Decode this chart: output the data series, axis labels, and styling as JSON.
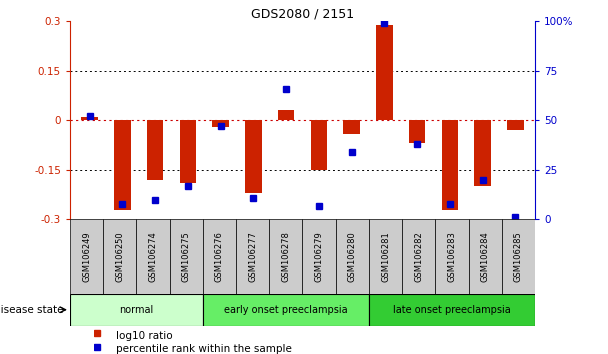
{
  "title": "GDS2080 / 2151",
  "samples": [
    "GSM106249",
    "GSM106250",
    "GSM106274",
    "GSM106275",
    "GSM106276",
    "GSM106277",
    "GSM106278",
    "GSM106279",
    "GSM106280",
    "GSM106281",
    "GSM106282",
    "GSM106283",
    "GSM106284",
    "GSM106285"
  ],
  "log10_ratio": [
    0.01,
    -0.27,
    -0.18,
    -0.19,
    -0.02,
    -0.22,
    0.03,
    -0.15,
    -0.04,
    0.29,
    -0.07,
    -0.27,
    -0.2,
    -0.03
  ],
  "percentile_rank": [
    52,
    8,
    10,
    17,
    47,
    11,
    66,
    7,
    34,
    99,
    38,
    8,
    20,
    1
  ],
  "groups": [
    {
      "label": "normal",
      "start": 0,
      "end": 4,
      "color": "#ccffcc"
    },
    {
      "label": "early onset preeclampsia",
      "start": 4,
      "end": 9,
      "color": "#66ee66"
    },
    {
      "label": "late onset preeclampsia",
      "start": 9,
      "end": 14,
      "color": "#33cc33"
    }
  ],
  "ylim_left": [
    -0.3,
    0.3
  ],
  "ylim_right": [
    0,
    100
  ],
  "yticks_left": [
    -0.3,
    -0.15,
    0,
    0.15,
    0.3
  ],
  "ytick_labels_left": [
    "-0.3",
    "-0.15",
    "0",
    "0.15",
    "0.3"
  ],
  "yticks_right": [
    0,
    25,
    50,
    75,
    100
  ],
  "ytick_labels_right": [
    "0",
    "25",
    "50",
    "75",
    "100%"
  ],
  "bar_color": "#cc2200",
  "dot_color": "#0000cc",
  "zero_line_color": "#cc0000",
  "grid_color": "#000000",
  "left_tick_color": "#cc2200",
  "right_tick_color": "#0000cc",
  "bg_color": "#ffffff",
  "sample_box_color": "#cccccc",
  "dotted_lines": [
    -0.15,
    0.15
  ]
}
